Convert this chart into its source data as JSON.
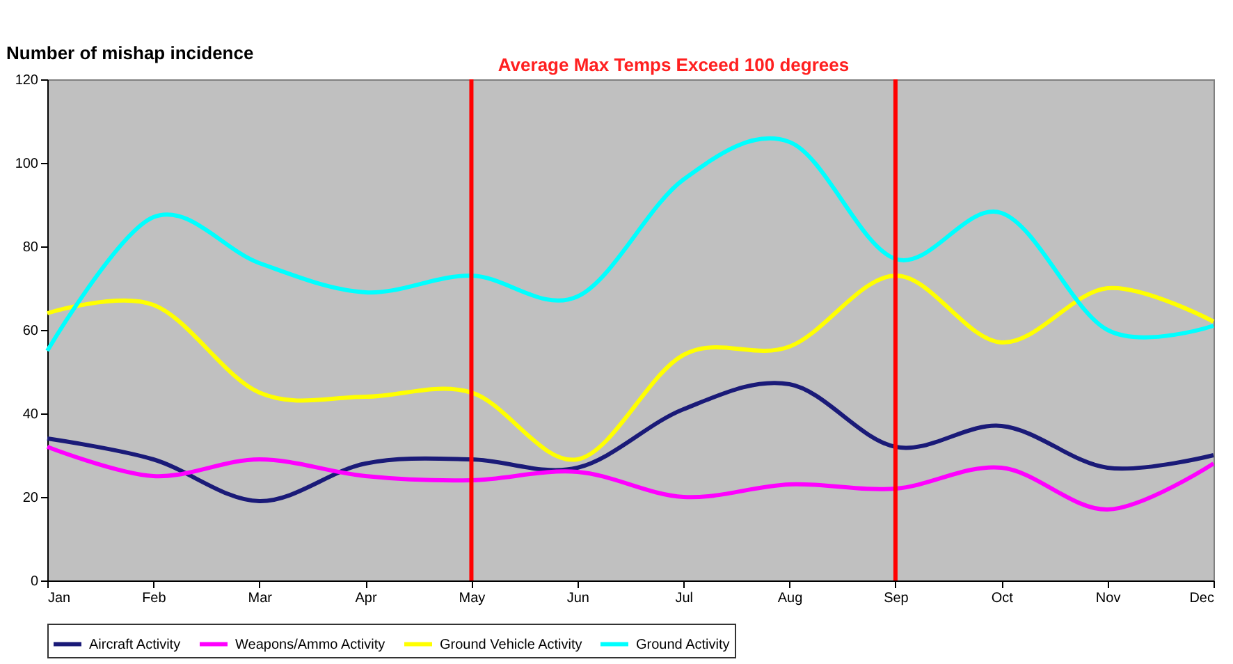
{
  "chart_data": {
    "type": "line",
    "ylabel": "Number of mishap incidence",
    "annotations": [
      "Average Max Temps Exceed 100 degrees"
    ],
    "categories": [
      "Jan",
      "Feb",
      "Mar",
      "Apr",
      "May",
      "Jun",
      "Jul",
      "Aug",
      "Sep",
      "Oct",
      "Nov",
      "Dec"
    ],
    "series": [
      {
        "name": "Aircraft Activity",
        "color": "#1a1a78",
        "values": [
          34,
          29,
          19,
          28,
          29,
          27,
          41,
          47,
          32,
          37,
          27,
          30
        ]
      },
      {
        "name": "Weapons/Ammo Activity",
        "color": "#ff00ff",
        "values": [
          32,
          25,
          29,
          25,
          24,
          26,
          20,
          23,
          22,
          27,
          17,
          28
        ]
      },
      {
        "name": "Ground Vehicle Activity",
        "color": "#ffff00",
        "values": [
          64,
          66,
          45,
          44,
          45,
          29,
          54,
          56,
          73,
          57,
          70,
          62
        ]
      },
      {
        "name": "Ground Activity",
        "color": "#00ffff",
        "values": [
          55,
          87,
          76,
          69,
          73,
          68,
          96,
          105,
          77,
          88,
          60,
          61
        ]
      }
    ],
    "ylim": [
      0,
      120
    ],
    "yticks": [
      0,
      20,
      40,
      60,
      80,
      100,
      120
    ],
    "ref_lines": [
      {
        "axis": "x",
        "value": "May",
        "color": "#ff0000"
      },
      {
        "axis": "x",
        "value": "Sep",
        "color": "#ff0000"
      }
    ],
    "grid": false,
    "legend": "bottom",
    "marker": "none",
    "line_style": "solid"
  }
}
